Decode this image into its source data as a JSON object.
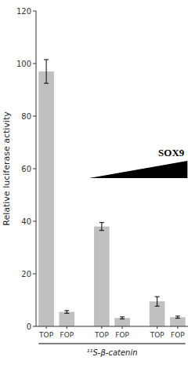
{
  "chart_data": {
    "type": "bar",
    "categories": [
      "TOP",
      "FOP",
      "TOP",
      "FOP",
      "TOP",
      "FOP"
    ],
    "values": [
      97,
      5.5,
      38,
      3.2,
      9.5,
      3.5
    ],
    "errors": [
      4.5,
      0.5,
      1.5,
      0.4,
      1.8,
      0.4
    ],
    "color": "#c0c0c0",
    "xlabel": "¹¹S-β-catenin",
    "ylabel": "Relative luciferase activity",
    "ylim": [
      0,
      120
    ],
    "yticks": [
      0,
      20,
      40,
      60,
      80,
      100,
      120
    ],
    "grid": false,
    "annotation": "SOX9"
  }
}
